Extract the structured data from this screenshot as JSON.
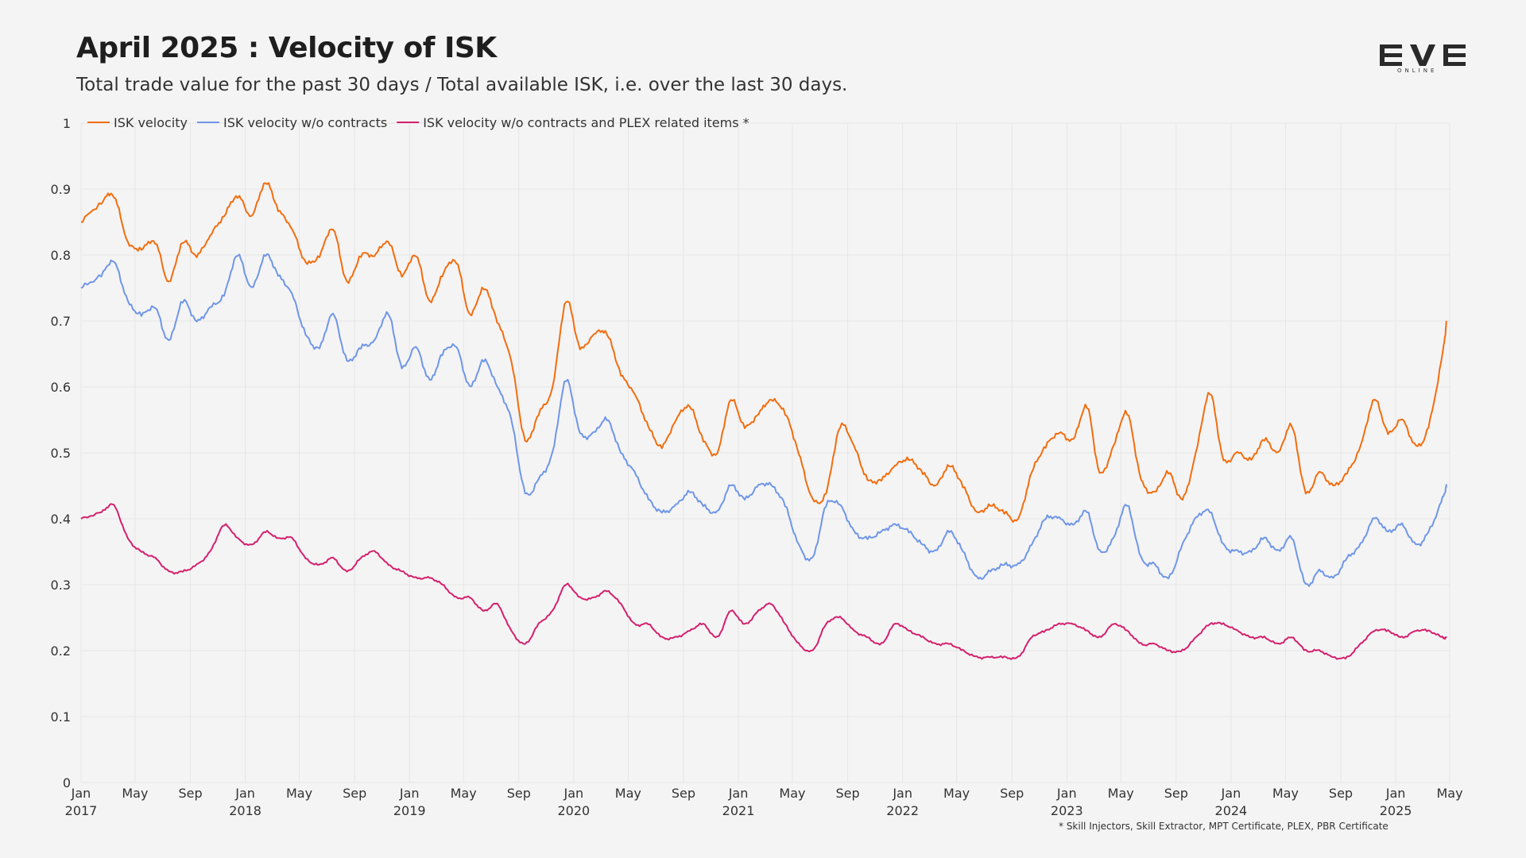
{
  "header": {
    "title": "April 2025 : Velocity of ISK",
    "subtitle": "Total trade value for the past 30 days / Total available ISK, i.e. over the last 30 days."
  },
  "logo": {
    "text": "EVE",
    "subtext": "ONLINE"
  },
  "footnote": "* Skill Injectors, Skill Extractor, MPT Certificate, PLEX, PBR Certificate",
  "colors": {
    "orange": "#f26d0f",
    "blue": "#6f96e8",
    "magenta": "#d3206e",
    "grid": "#e6e6e6"
  },
  "chart_data": {
    "type": "line",
    "title": "April 2025 : Velocity of ISK",
    "ylim": [
      0,
      1
    ],
    "y_ticks": [
      "0",
      "0.1",
      "0.2",
      "0.3",
      "0.4",
      "0.5",
      "0.6",
      "0.7",
      "0.8",
      "0.9",
      "1"
    ],
    "x_range": [
      "2017-01-01",
      "2025-05-01"
    ],
    "x_ticks": [
      {
        "date": "2017-01-01",
        "label": "Jan",
        "year": "2017"
      },
      {
        "date": "2017-05-01",
        "label": "May"
      },
      {
        "date": "2017-09-01",
        "label": "Sep"
      },
      {
        "date": "2018-01-01",
        "label": "Jan",
        "year": "2018"
      },
      {
        "date": "2018-05-01",
        "label": "May"
      },
      {
        "date": "2018-09-01",
        "label": "Sep"
      },
      {
        "date": "2019-01-01",
        "label": "Jan",
        "year": "2019"
      },
      {
        "date": "2019-05-01",
        "label": "May"
      },
      {
        "date": "2019-09-01",
        "label": "Sep"
      },
      {
        "date": "2020-01-01",
        "label": "Jan",
        "year": "2020"
      },
      {
        "date": "2020-05-01",
        "label": "May"
      },
      {
        "date": "2020-09-01",
        "label": "Sep"
      },
      {
        "date": "2021-01-01",
        "label": "Jan",
        "year": "2021"
      },
      {
        "date": "2021-05-01",
        "label": "May"
      },
      {
        "date": "2021-09-01",
        "label": "Sep"
      },
      {
        "date": "2022-01-01",
        "label": "Jan",
        "year": "2022"
      },
      {
        "date": "2022-05-01",
        "label": "May"
      },
      {
        "date": "2022-09-01",
        "label": "Sep"
      },
      {
        "date": "2023-01-01",
        "label": "Jan",
        "year": "2023"
      },
      {
        "date": "2023-05-01",
        "label": "May"
      },
      {
        "date": "2023-09-01",
        "label": "Sep"
      },
      {
        "date": "2024-01-01",
        "label": "Jan",
        "year": "2024"
      },
      {
        "date": "2024-05-01",
        "label": "May"
      },
      {
        "date": "2024-09-01",
        "label": "Sep"
      },
      {
        "date": "2025-01-01",
        "label": "Jan",
        "year": "2025"
      },
      {
        "date": "2025-05-01",
        "label": "May"
      }
    ],
    "legend_position": "top-left",
    "grid": true,
    "x": [
      "2017-01",
      "2017-02",
      "2017-03",
      "2017-04",
      "2017-05",
      "2017-06",
      "2017-07",
      "2017-08",
      "2017-09",
      "2017-10",
      "2017-11",
      "2017-12",
      "2018-01",
      "2018-02",
      "2018-03",
      "2018-04",
      "2018-05",
      "2018-06",
      "2018-07",
      "2018-08",
      "2018-09",
      "2018-10",
      "2018-11",
      "2018-12",
      "2019-01",
      "2019-02",
      "2019-03",
      "2019-04",
      "2019-05",
      "2019-06",
      "2019-07",
      "2019-08",
      "2019-09",
      "2019-10",
      "2019-11",
      "2019-12",
      "2020-01",
      "2020-02",
      "2020-03",
      "2020-04",
      "2020-05",
      "2020-06",
      "2020-07",
      "2020-08",
      "2020-09",
      "2020-10",
      "2020-11",
      "2020-12",
      "2021-01",
      "2021-02",
      "2021-03",
      "2021-04",
      "2021-05",
      "2021-06",
      "2021-07",
      "2021-08",
      "2021-09",
      "2021-10",
      "2021-11",
      "2021-12",
      "2022-01",
      "2022-02",
      "2022-03",
      "2022-04",
      "2022-05",
      "2022-06",
      "2022-07",
      "2022-08",
      "2022-09",
      "2022-10",
      "2022-11",
      "2022-12",
      "2023-01",
      "2023-02",
      "2023-03",
      "2023-04",
      "2023-05",
      "2023-06",
      "2023-07",
      "2023-08",
      "2023-09",
      "2023-10",
      "2023-11",
      "2023-12",
      "2024-01",
      "2024-02",
      "2024-03",
      "2024-04",
      "2024-05",
      "2024-06",
      "2024-07",
      "2024-08",
      "2024-09",
      "2024-10",
      "2024-11",
      "2024-12",
      "2025-01",
      "2025-02",
      "2025-03",
      "2025-04",
      "2025-05"
    ],
    "series": [
      {
        "name": "ISK velocity",
        "color": "#f26d0f",
        "values": [
          0.85,
          0.88,
          0.89,
          0.82,
          0.81,
          0.82,
          0.76,
          0.82,
          0.8,
          0.83,
          0.86,
          0.89,
          0.86,
          0.91,
          0.87,
          0.84,
          0.79,
          0.8,
          0.84,
          0.76,
          0.8,
          0.8,
          0.82,
          0.77,
          0.8,
          0.73,
          0.77,
          0.79,
          0.71,
          0.75,
          0.7,
          0.64,
          0.52,
          0.56,
          0.6,
          0.73,
          0.66,
          0.68,
          0.68,
          0.62,
          0.59,
          0.54,
          0.51,
          0.55,
          0.57,
          0.52,
          0.5,
          0.58,
          0.54,
          0.56,
          0.58,
          0.56,
          0.5,
          0.43,
          0.44,
          0.54,
          0.51,
          0.46,
          0.46,
          0.48,
          0.49,
          0.47,
          0.45,
          0.48,
          0.45,
          0.41,
          0.42,
          0.41,
          0.4,
          0.47,
          0.51,
          0.53,
          0.52,
          0.57,
          0.47,
          0.51,
          0.56,
          0.46,
          0.44,
          0.47,
          0.43,
          0.5,
          0.59,
          0.49,
          0.5,
          0.49,
          0.52,
          0.5,
          0.54,
          0.44,
          0.47,
          0.45,
          0.47,
          0.51,
          0.58,
          0.53,
          0.55,
          0.51,
          0.54,
          0.65,
          0.7
        ]
      },
      {
        "name": "ISK velocity w/o contracts",
        "color": "#6f96e8",
        "values": [
          0.75,
          0.77,
          0.79,
          0.73,
          0.71,
          0.72,
          0.67,
          0.73,
          0.7,
          0.72,
          0.74,
          0.8,
          0.75,
          0.8,
          0.77,
          0.74,
          0.68,
          0.66,
          0.71,
          0.64,
          0.66,
          0.67,
          0.71,
          0.63,
          0.66,
          0.61,
          0.65,
          0.66,
          0.6,
          0.64,
          0.6,
          0.55,
          0.44,
          0.46,
          0.5,
          0.61,
          0.53,
          0.53,
          0.55,
          0.5,
          0.47,
          0.43,
          0.41,
          0.42,
          0.44,
          0.42,
          0.41,
          0.45,
          0.43,
          0.45,
          0.45,
          0.42,
          0.36,
          0.34,
          0.42,
          0.42,
          0.38,
          0.37,
          0.38,
          0.39,
          0.38,
          0.36,
          0.35,
          0.38,
          0.35,
          0.31,
          0.32,
          0.33,
          0.33,
          0.36,
          0.4,
          0.4,
          0.39,
          0.41,
          0.35,
          0.37,
          0.42,
          0.34,
          0.33,
          0.31,
          0.36,
          0.4,
          0.41,
          0.36,
          0.35,
          0.35,
          0.37,
          0.35,
          0.37,
          0.3,
          0.32,
          0.31,
          0.34,
          0.36,
          0.4,
          0.38,
          0.39,
          0.36,
          0.38,
          0.43,
          0.45
        ]
      },
      {
        "name": "ISK velocity w/o contracts and PLEX related items *",
        "color": "#d3206e",
        "values": [
          0.4,
          0.41,
          0.42,
          0.37,
          0.35,
          0.34,
          0.32,
          0.32,
          0.33,
          0.35,
          0.39,
          0.37,
          0.36,
          0.38,
          0.37,
          0.37,
          0.34,
          0.33,
          0.34,
          0.32,
          0.34,
          0.35,
          0.33,
          0.32,
          0.31,
          0.31,
          0.3,
          0.28,
          0.28,
          0.26,
          0.27,
          0.23,
          0.21,
          0.24,
          0.26,
          0.3,
          0.28,
          0.28,
          0.29,
          0.27,
          0.24,
          0.24,
          0.22,
          0.22,
          0.23,
          0.24,
          0.22,
          0.26,
          0.24,
          0.26,
          0.27,
          0.24,
          0.21,
          0.2,
          0.24,
          0.25,
          0.23,
          0.22,
          0.21,
          0.24,
          0.23,
          0.22,
          0.21,
          0.21,
          0.2,
          0.19,
          0.19,
          0.19,
          0.19,
          0.22,
          0.23,
          0.24,
          0.24,
          0.23,
          0.22,
          0.24,
          0.23,
          0.21,
          0.21,
          0.2,
          0.2,
          0.22,
          0.24,
          0.24,
          0.23,
          0.22,
          0.22,
          0.21,
          0.22,
          0.2,
          0.2,
          0.19,
          0.19,
          0.21,
          0.23,
          0.23,
          0.22,
          0.23,
          0.23,
          0.22,
          0.22
        ]
      }
    ]
  }
}
